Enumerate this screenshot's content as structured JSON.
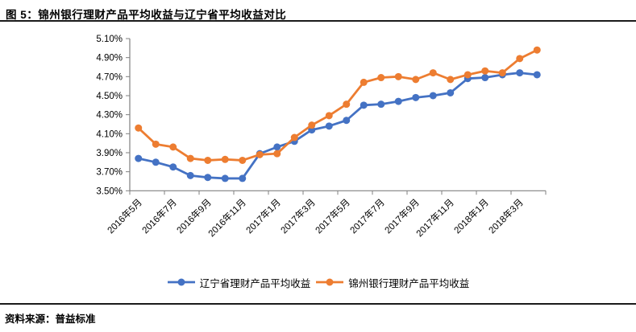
{
  "page": {
    "title": "图 5：锦州银行理财产品平均收益与辽宁省平均收益对比",
    "source": "资料来源：普益标准"
  },
  "chart_data": {
    "type": "line",
    "title": "图 5：锦州银行理财产品平均收益与辽宁省平均收益对比",
    "categories": [
      "2016年5月",
      "2016年6月",
      "2016年7月",
      "2016年8月",
      "2016年9月",
      "2016年10月",
      "2016年11月",
      "2016年12月",
      "2017年1月",
      "2017年2月",
      "2017年3月",
      "2017年4月",
      "2017年5月",
      "2017年6月",
      "2017年7月",
      "2017年8月",
      "2017年9月",
      "2017年10月",
      "2017年11月",
      "2017年12月",
      "2018年1月",
      "2018年2月",
      "2018年3月",
      "2018年4月"
    ],
    "x_tick_labels_shown": [
      "2016年5月",
      "2016年7月",
      "2016年9月",
      "2016年11月",
      "2017年1月",
      "2017年3月",
      "2017年5月",
      "2017年7月",
      "2017年9月",
      "2017年11月",
      "2018年1月",
      "2018年3月"
    ],
    "series": [
      {
        "name": "辽宁省理财产品平均收益",
        "color": "#4472C4",
        "values": [
          3.84,
          3.8,
          3.75,
          3.66,
          3.64,
          3.63,
          3.63,
          3.89,
          3.96,
          4.02,
          4.14,
          4.18,
          4.24,
          4.4,
          4.41,
          4.44,
          4.48,
          4.5,
          4.53,
          4.68,
          4.69,
          4.72,
          4.74,
          4.72
        ]
      },
      {
        "name": "锦州银行理财产品平均收益",
        "color": "#ED7D31",
        "values": [
          4.16,
          3.99,
          3.96,
          3.84,
          3.82,
          3.83,
          3.82,
          3.88,
          3.89,
          4.06,
          4.19,
          4.29,
          4.41,
          4.64,
          4.69,
          4.7,
          4.67,
          4.74,
          4.67,
          4.72,
          4.76,
          4.74,
          4.89,
          4.98
        ]
      }
    ],
    "ylim": [
      3.5,
      5.1
    ],
    "y_tick_step": 0.2,
    "y_tick_labels": [
      "3.50%",
      "3.70%",
      "3.90%",
      "4.10%",
      "4.30%",
      "4.50%",
      "4.70%",
      "4.90%",
      "5.10%"
    ],
    "xlabel": "",
    "ylabel": "",
    "grid": false,
    "legend_position": "bottom",
    "axis_color": "#808080"
  }
}
